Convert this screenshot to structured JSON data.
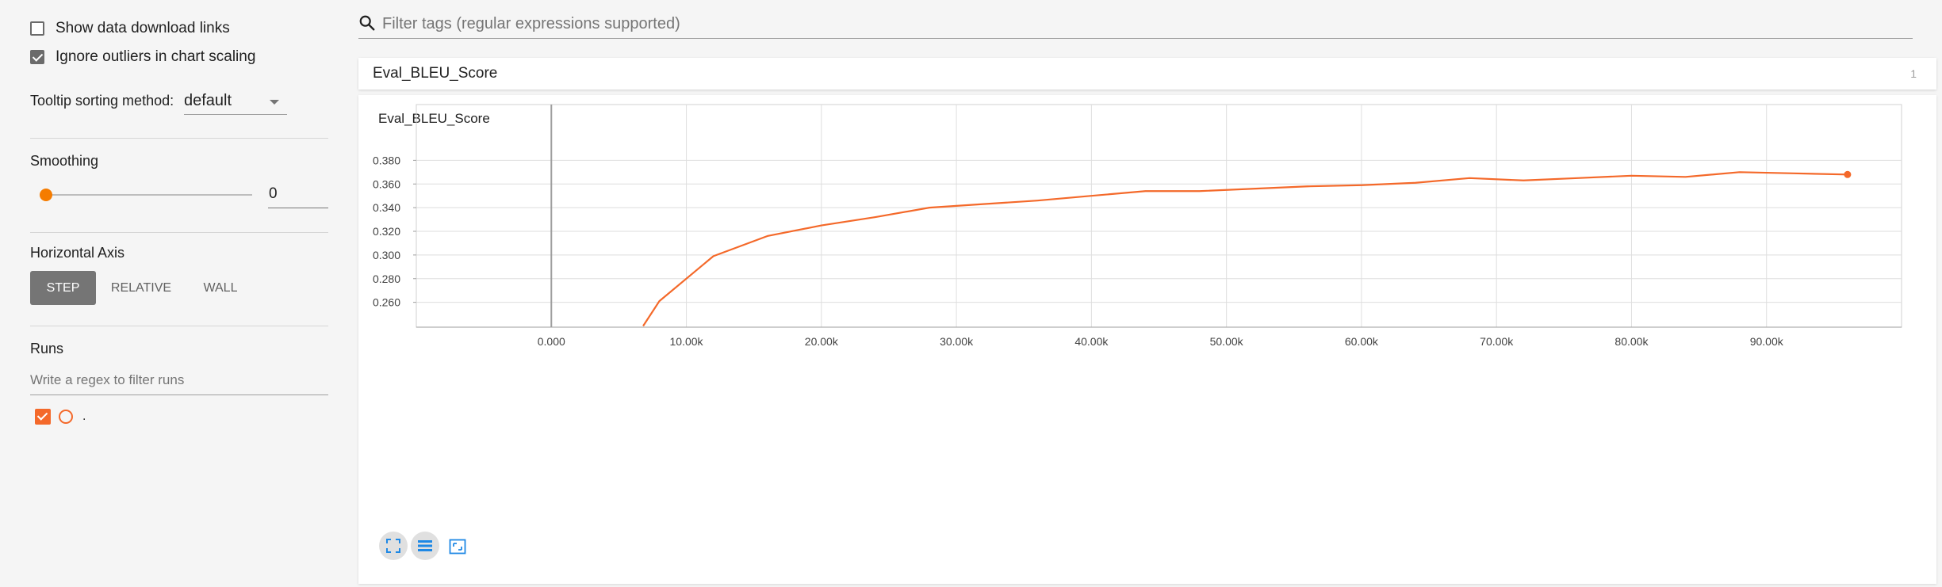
{
  "sidebar": {
    "show_download_label": "Show data download links",
    "ignore_outliers_label": "Ignore outliers in chart scaling",
    "tooltip_sort_label": "Tooltip sorting method:",
    "tooltip_sort_value": "default",
    "smoothing_title": "Smoothing",
    "smoothing_value": "0",
    "smoothing_level": 0,
    "horizontal_axis_title": "Horizontal Axis",
    "axis_options": [
      "STEP",
      "RELATIVE",
      "WALL"
    ],
    "axis_selected": "STEP",
    "runs_title": "Runs",
    "runs_filter_placeholder": "Write a regex to filter runs",
    "run_name": "."
  },
  "main": {
    "filter_placeholder": "Filter tags (regular expressions supported)",
    "card_title": "Eval_BLEU_Score",
    "card_count": "1",
    "chart_title": "Eval_BLEU_Score"
  },
  "colors": {
    "series": "#f4692a",
    "accent": "#f57c00",
    "toolbar_icon": "#1e88e5"
  },
  "chart_data": {
    "type": "line",
    "title": "Eval_BLEU_Score",
    "xlabel": "",
    "ylabel": "",
    "x_tick_labels": [
      "0.000",
      "10.00k",
      "20.00k",
      "30.00k",
      "40.00k",
      "50.00k",
      "60.00k",
      "70.00k",
      "80.00k",
      "90.00k"
    ],
    "y_tick_labels": [
      "0.260",
      "0.280",
      "0.300",
      "0.320",
      "0.340",
      "0.360",
      "0.380"
    ],
    "xlim": [
      -10000,
      100000
    ],
    "ylim": [
      0.239,
      0.399
    ],
    "grid": true,
    "series": [
      {
        "x": [
          6800,
          8000,
          12000,
          16000,
          20000,
          24000,
          28000,
          32000,
          36000,
          40000,
          44000,
          48000,
          52000,
          56000,
          60000,
          64000,
          68000,
          72000,
          76000,
          80000,
          84000,
          88000,
          92000,
          96000
        ],
        "y": [
          0.24,
          0.261,
          0.299,
          0.316,
          0.325,
          0.332,
          0.34,
          0.343,
          0.346,
          0.35,
          0.354,
          0.354,
          0.356,
          0.358,
          0.359,
          0.361,
          0.365,
          0.363,
          0.365,
          0.367,
          0.366,
          0.37,
          0.369,
          0.368
        ]
      }
    ]
  }
}
